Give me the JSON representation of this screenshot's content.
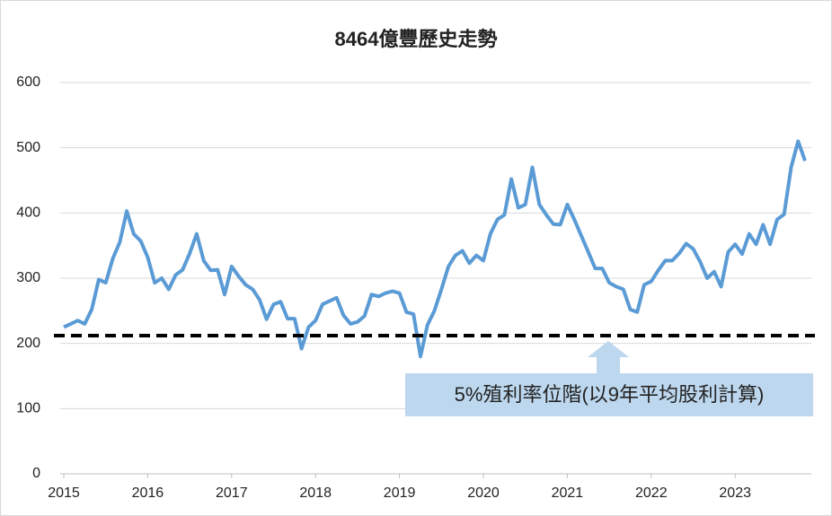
{
  "chart_data": {
    "type": "line",
    "title": "8464億豐歷史走勢",
    "categories": [
      "2015",
      null,
      null,
      null,
      null,
      null,
      null,
      null,
      null,
      null,
      null,
      null,
      "2016",
      null,
      null,
      null,
      null,
      null,
      null,
      null,
      null,
      null,
      null,
      null,
      "2017",
      null,
      null,
      null,
      null,
      null,
      null,
      null,
      null,
      null,
      null,
      null,
      "2018",
      null,
      null,
      null,
      null,
      null,
      null,
      null,
      null,
      null,
      null,
      null,
      "2019",
      null,
      null,
      null,
      null,
      null,
      null,
      null,
      null,
      null,
      null,
      null,
      "2020",
      null,
      null,
      null,
      null,
      null,
      null,
      null,
      null,
      null,
      null,
      null,
      "2021",
      null,
      null,
      null,
      null,
      null,
      null,
      null,
      null,
      null,
      null,
      null,
      "2022",
      null,
      null,
      null,
      null,
      null,
      null,
      null,
      null,
      null,
      null,
      null,
      "2023",
      null,
      null,
      null,
      null,
      null,
      null,
      null,
      null,
      null,
      null
    ],
    "values": [
      225,
      230,
      235,
      230,
      252,
      298,
      293,
      330,
      355,
      403,
      368,
      357,
      332,
      293,
      300,
      283,
      305,
      313,
      338,
      368,
      327,
      312,
      313,
      275,
      318,
      303,
      290,
      283,
      267,
      237,
      260,
      264,
      238,
      238,
      192,
      225,
      235,
      260,
      265,
      270,
      243,
      230,
      233,
      242,
      275,
      272,
      277,
      280,
      277,
      248,
      245,
      180,
      228,
      250,
      283,
      318,
      335,
      342,
      323,
      335,
      327,
      368,
      390,
      397,
      452,
      408,
      413,
      470,
      413,
      397,
      383,
      382,
      413,
      390,
      365,
      340,
      315,
      315,
      293,
      287,
      283,
      252,
      248,
      290,
      295,
      312,
      327,
      327,
      338,
      353,
      345,
      325,
      300,
      310,
      287,
      340,
      352,
      337,
      368,
      352,
      382,
      352,
      390,
      398,
      470,
      510,
      480
    ],
    "color": "#5b9bd5",
    "ylim": [
      0,
      600
    ],
    "yticks": [
      0,
      100,
      200,
      300,
      400,
      500,
      600
    ],
    "grid": true,
    "reference_line": {
      "value": 212,
      "color": "#000000",
      "label": "5%殖利率位階(以9年平均股利計算)"
    }
  }
}
